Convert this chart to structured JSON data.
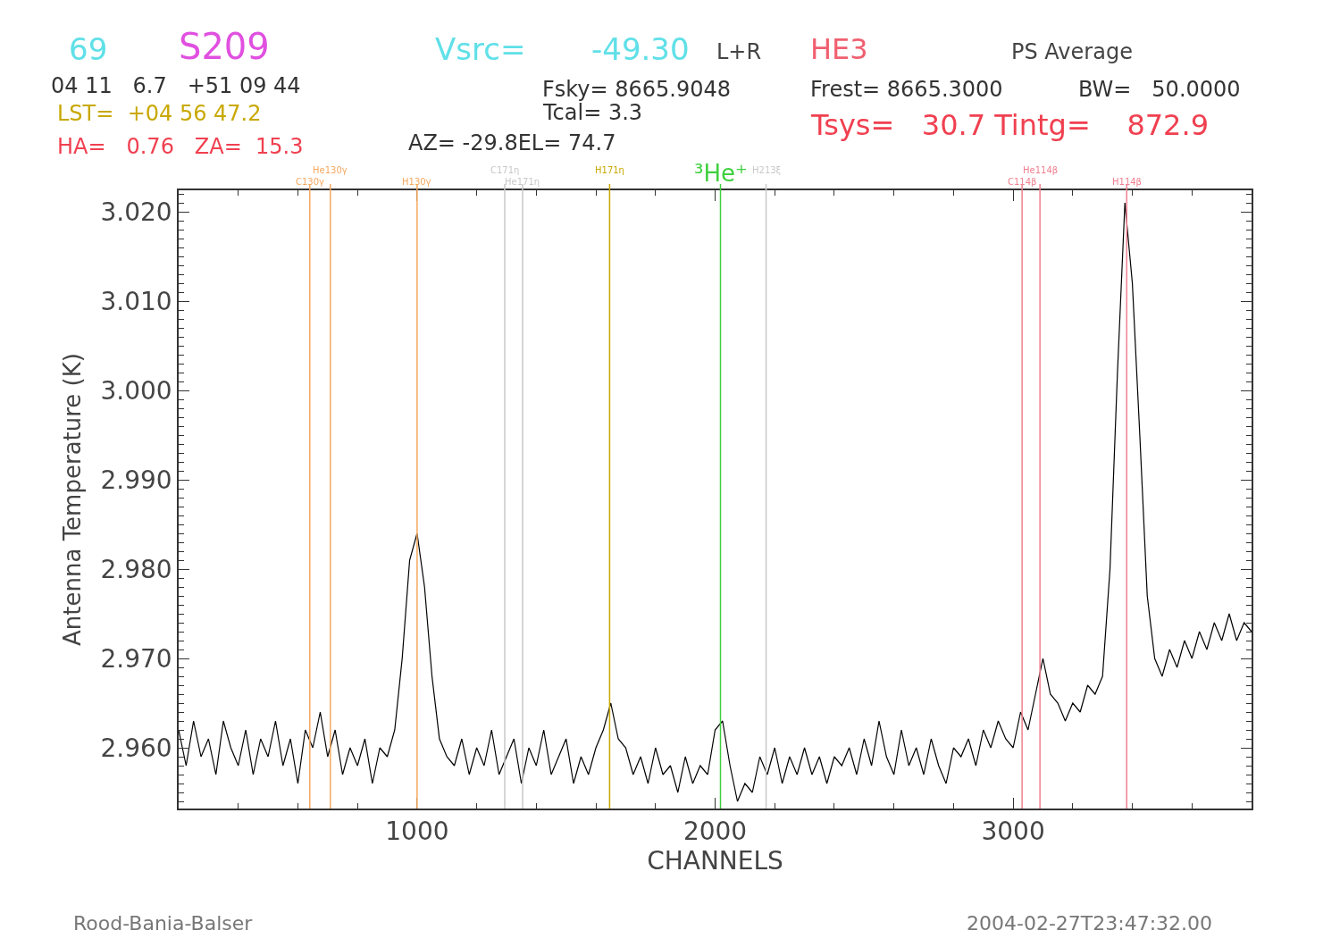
{
  "chart_data": {
    "type": "line",
    "title": "S209",
    "xlabel": "CHANNELS",
    "ylabel": "Antenna Temperature (K)",
    "annotations": [
      "69",
      "Vsrc=",
      "-49.30",
      "L+R",
      "HE3",
      "PS Average",
      "04 11   6.7   +51 09 44",
      "LST=  +04 56 47.2",
      "HA=   0.76   ZA=  15.3",
      "Fsky= 8665.9048",
      "Tcal= 3.3",
      "AZ= -29.8EL= 74.7",
      "Frest= 8665.3000",
      "BW=   50.0000",
      "Tsys=   30.7 Tintg=    872.9",
      "Rood-Bania-Balser",
      "2004-02-27T23:47:32.00"
    ],
    "x": [
      200,
      225,
      250,
      275,
      300,
      325,
      350,
      375,
      400,
      425,
      450,
      475,
      500,
      525,
      550,
      575,
      600,
      625,
      650,
      675,
      700,
      725,
      750,
      775,
      800,
      825,
      850,
      875,
      900,
      925,
      950,
      975,
      1000,
      1025,
      1050,
      1075,
      1100,
      1125,
      1150,
      1175,
      1200,
      1225,
      1250,
      1275,
      1300,
      1325,
      1350,
      1375,
      1400,
      1425,
      1450,
      1475,
      1500,
      1525,
      1550,
      1575,
      1600,
      1625,
      1650,
      1675,
      1700,
      1725,
      1750,
      1775,
      1800,
      1825,
      1850,
      1875,
      1900,
      1925,
      1950,
      1975,
      2000,
      2025,
      2050,
      2075,
      2100,
      2125,
      2150,
      2175,
      2200,
      2225,
      2250,
      2275,
      2300,
      2325,
      2350,
      2375,
      2400,
      2425,
      2450,
      2475,
      2500,
      2525,
      2550,
      2575,
      2600,
      2625,
      2650,
      2675,
      2700,
      2725,
      2750,
      2775,
      2800,
      2825,
      2850,
      2875,
      2900,
      2925,
      2950,
      2975,
      3000,
      3025,
      3050,
      3075,
      3100,
      3125,
      3150,
      3175,
      3200,
      3225,
      3250,
      3275,
      3300,
      3325,
      3350,
      3375,
      3400,
      3425,
      3450,
      3475,
      3500,
      3525,
      3550,
      3575,
      3600,
      3625,
      3650,
      3675,
      3700,
      3725,
      3750,
      3775,
      3800
    ],
    "series": [
      {
        "color": "#000000",
        "values": [
          2.962,
          2.958,
          2.963,
          2.959,
          2.961,
          2.957,
          2.963,
          2.96,
          2.958,
          2.962,
          2.957,
          2.961,
          2.959,
          2.963,
          2.958,
          2.961,
          2.956,
          2.962,
          2.96,
          2.964,
          2.959,
          2.962,
          2.957,
          2.96,
          2.958,
          2.961,
          2.956,
          2.96,
          2.959,
          2.962,
          2.97,
          2.981,
          2.984,
          2.978,
          2.968,
          2.961,
          2.959,
          2.958,
          2.961,
          2.957,
          2.96,
          2.958,
          2.962,
          2.957,
          2.959,
          2.961,
          2.956,
          2.96,
          2.958,
          2.962,
          2.957,
          2.959,
          2.961,
          2.956,
          2.959,
          2.957,
          2.96,
          2.962,
          2.965,
          2.961,
          2.96,
          2.957,
          2.959,
          2.956,
          2.96,
          2.957,
          2.958,
          2.955,
          2.959,
          2.956,
          2.958,
          2.957,
          2.962,
          2.963,
          2.958,
          2.954,
          2.956,
          2.955,
          2.959,
          2.957,
          2.96,
          2.956,
          2.959,
          2.957,
          2.96,
          2.957,
          2.959,
          2.956,
          2.959,
          2.958,
          2.96,
          2.957,
          2.961,
          2.958,
          2.963,
          2.959,
          2.957,
          2.962,
          2.958,
          2.96,
          2.957,
          2.961,
          2.958,
          2.956,
          2.96,
          2.959,
          2.961,
          2.958,
          2.962,
          2.96,
          2.963,
          2.961,
          2.96,
          2.964,
          2.962,
          2.966,
          2.97,
          2.966,
          2.965,
          2.963,
          2.965,
          2.964,
          2.967,
          2.966,
          2.968,
          2.98,
          3.002,
          3.021,
          3.012,
          2.995,
          2.977,
          2.97,
          2.968,
          2.971,
          2.969,
          2.972,
          2.97,
          2.973,
          2.971,
          2.974,
          2.972,
          2.975,
          2.972,
          2.974,
          2.973
        ]
      }
    ],
    "xlim": [
      200,
      3800
    ],
    "xticks": [
      1000,
      2000,
      3000
    ],
    "ylim": [
      2.9532,
      3.0224
    ],
    "yticks": [
      {
        "value": 2.96,
        "label": "2.960"
      },
      {
        "value": 2.97,
        "label": "2.970"
      },
      {
        "value": 2.98,
        "label": "2.980"
      },
      {
        "value": 2.99,
        "label": "2.990"
      },
      {
        "value": 3.0,
        "label": "3.000"
      },
      {
        "value": 3.01,
        "label": "3.010"
      },
      {
        "value": 3.02,
        "label": "3.020"
      }
    ],
    "ref_lines": [
      {
        "axis": "x",
        "value": 640,
        "label": "C130γ",
        "color": "#f5a860"
      },
      {
        "axis": "x",
        "value": 709,
        "label": "He130γ",
        "color": "#f5a860"
      },
      {
        "axis": "x",
        "value": 1000,
        "label": "H130γ",
        "color": "#f5a860"
      },
      {
        "axis": "x",
        "value": 1294,
        "label": "C171η",
        "color": "#c8c8c8"
      },
      {
        "axis": "x",
        "value": 1354,
        "label": "He171η",
        "color": "#c8c8c8"
      },
      {
        "axis": "x",
        "value": 1646,
        "label": "H171η",
        "color": "#c8a800"
      },
      {
        "axis": "x",
        "value": 2018,
        "label": "³He⁺",
        "color": "#40d040"
      },
      {
        "axis": "x",
        "value": 2171,
        "label": "H213ξ",
        "color": "#c8c8c8"
      },
      {
        "axis": "x",
        "value": 3030,
        "label": "C114β",
        "color": "#f08090"
      },
      {
        "axis": "x",
        "value": 3090,
        "label": "He114β",
        "color": "#f08090"
      },
      {
        "axis": "x",
        "value": 3381,
        "label": "H114β",
        "color": "#f08090"
      }
    ]
  }
}
